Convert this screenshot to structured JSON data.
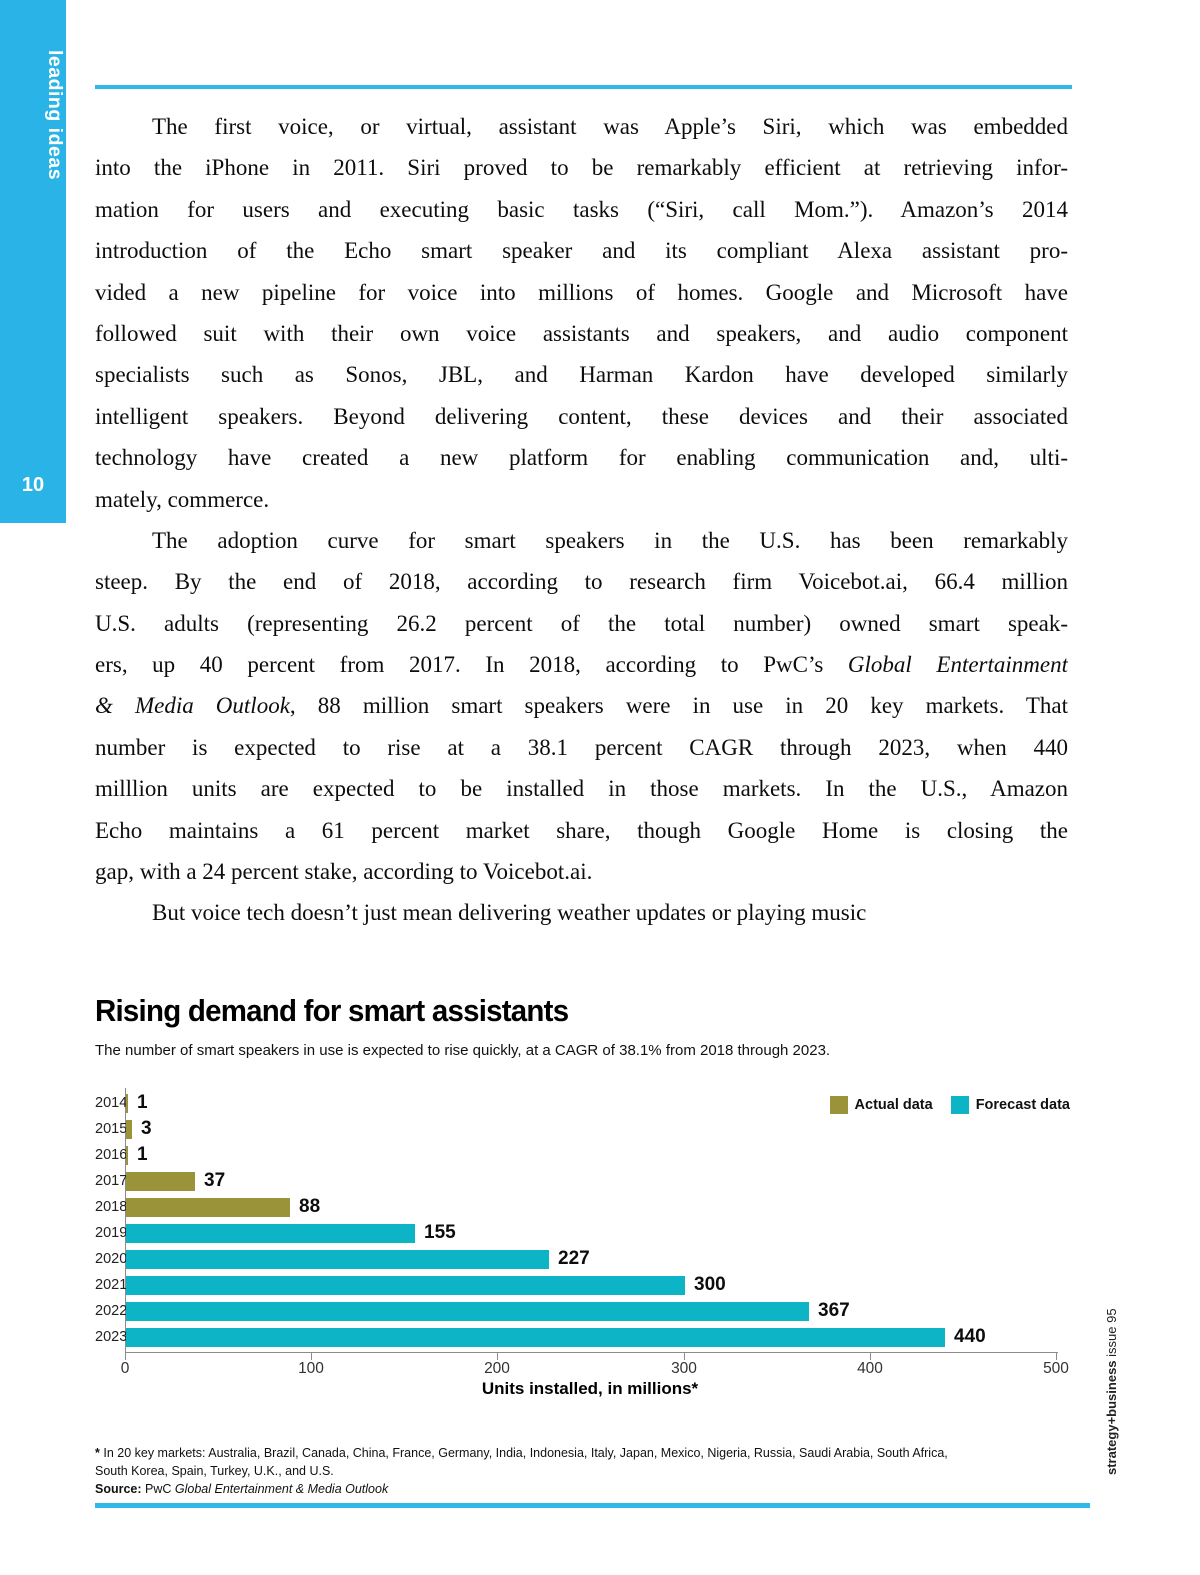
{
  "sidebar": {
    "label": "leading ideas",
    "page_number": "10"
  },
  "body": {
    "paragraphs": [
      {
        "lines": [
          "The first voice, or virtual, assistant was Apple’s Siri, which was embedded",
          "into the iPhone in 2011. Siri proved to be remarkably efficient at retrieving infor-",
          "mation for users and executing basic tasks (“Siri, call Mom.”). Amazon’s 2014",
          "introduction of the Echo smart speaker and its compliant Alexa assistant pro-",
          "vided a new pipeline for voice into millions of homes. Google and Microsoft have",
          "followed suit with their own voice assistants and speakers, and audio component",
          "specialists such as Sonos, JBL, and Harman Kardon have developed similarly",
          "intelligent speakers. Beyond delivering content, these devices and their associated",
          "technology have created a new platform for enabling communication and, ulti-",
          "mately, commerce."
        ]
      },
      {
        "lines": [
          "The adoption curve for smart speakers in the U.S. has been remarkably",
          "steep. By the end of 2018, according to research firm Voicebot.ai, 66.4 million",
          "U.S. adults (representing 26.2 percent of the total number) owned smart speak-",
          {
            "pre": "ers, up 40 percent from 2017. In 2018, according to PwC’s ",
            "italic": "Global Entertainment"
          },
          {
            "italic": "& Media Outlook",
            "post": ", 88 million smart speakers were in use in 20 key markets. That"
          },
          "number is expected to rise at a 38.1 percent CAGR through 2023, when 440",
          "milllion units are expected to be installed in those markets. In the U.S., Amazon",
          "Echo maintains a 61 percent market share, though Google Home is closing the",
          "gap, with a 24 percent stake, according to Voicebot.ai."
        ]
      },
      {
        "lines": [
          "But voice tech doesn’t just mean delivering weather updates or playing music"
        ]
      }
    ]
  },
  "chart_data": {
    "type": "bar",
    "orientation": "horizontal",
    "title": "Rising demand for smart assistants",
    "subtitle": "The number of smart speakers in use is expected to rise quickly, at a CAGR of 38.1% from 2018 through 2023.",
    "categories": [
      "2014",
      "2015",
      "2016",
      "2017",
      "2018",
      "2019",
      "2020",
      "2021",
      "2022",
      "2023"
    ],
    "series": [
      {
        "name": "Actual data",
        "color": "#9a9339",
        "values": [
          1,
          3,
          1,
          37,
          88,
          null,
          null,
          null,
          null,
          null
        ]
      },
      {
        "name": "Forecast data",
        "color": "#0db4c6",
        "values": [
          null,
          null,
          null,
          null,
          null,
          155,
          227,
          300,
          367,
          440
        ]
      }
    ],
    "bars": [
      {
        "year": "2014",
        "value": 1,
        "series": "actual"
      },
      {
        "year": "2015",
        "value": 3,
        "series": "actual"
      },
      {
        "year": "2016",
        "value": 1,
        "series": "actual"
      },
      {
        "year": "2017",
        "value": 37,
        "series": "actual"
      },
      {
        "year": "2018",
        "value": 88,
        "series": "actual"
      },
      {
        "year": "2019",
        "value": 155,
        "series": "forecast"
      },
      {
        "year": "2020",
        "value": 227,
        "series": "forecast"
      },
      {
        "year": "2021",
        "value": 300,
        "series": "forecast"
      },
      {
        "year": "2022",
        "value": 367,
        "series": "forecast"
      },
      {
        "year": "2023",
        "value": 440,
        "series": "forecast"
      }
    ],
    "colors": {
      "actual": "#9a9339",
      "forecast": "#0db4c6"
    },
    "xlabel": "Units installed, in millions*",
    "xticks": [
      0,
      100,
      200,
      300,
      400,
      500
    ],
    "xmax": 500,
    "legend_position": "top-right",
    "grid": false
  },
  "footnote": {
    "star": "*",
    "line1": " In 20 key markets: Australia, Brazil, Canada, China, France, Germany, India, Indonesia, Italy, Japan, Mexico, Nigeria, Russia, Saudi Arabia, South Africa,",
    "line2": "South Korea, Spain, Turkey, U.K., and U.S.",
    "source_label": "Source:",
    "source_pre": " PwC ",
    "source_title": "Global Entertainment & Media Outlook"
  },
  "spine": {
    "bold": "strategy+business",
    "regular": " issue 95"
  },
  "colors": {
    "accent_blue": "#29b3e7",
    "actual_olive": "#9a9339",
    "forecast_teal": "#0db4c6"
  }
}
